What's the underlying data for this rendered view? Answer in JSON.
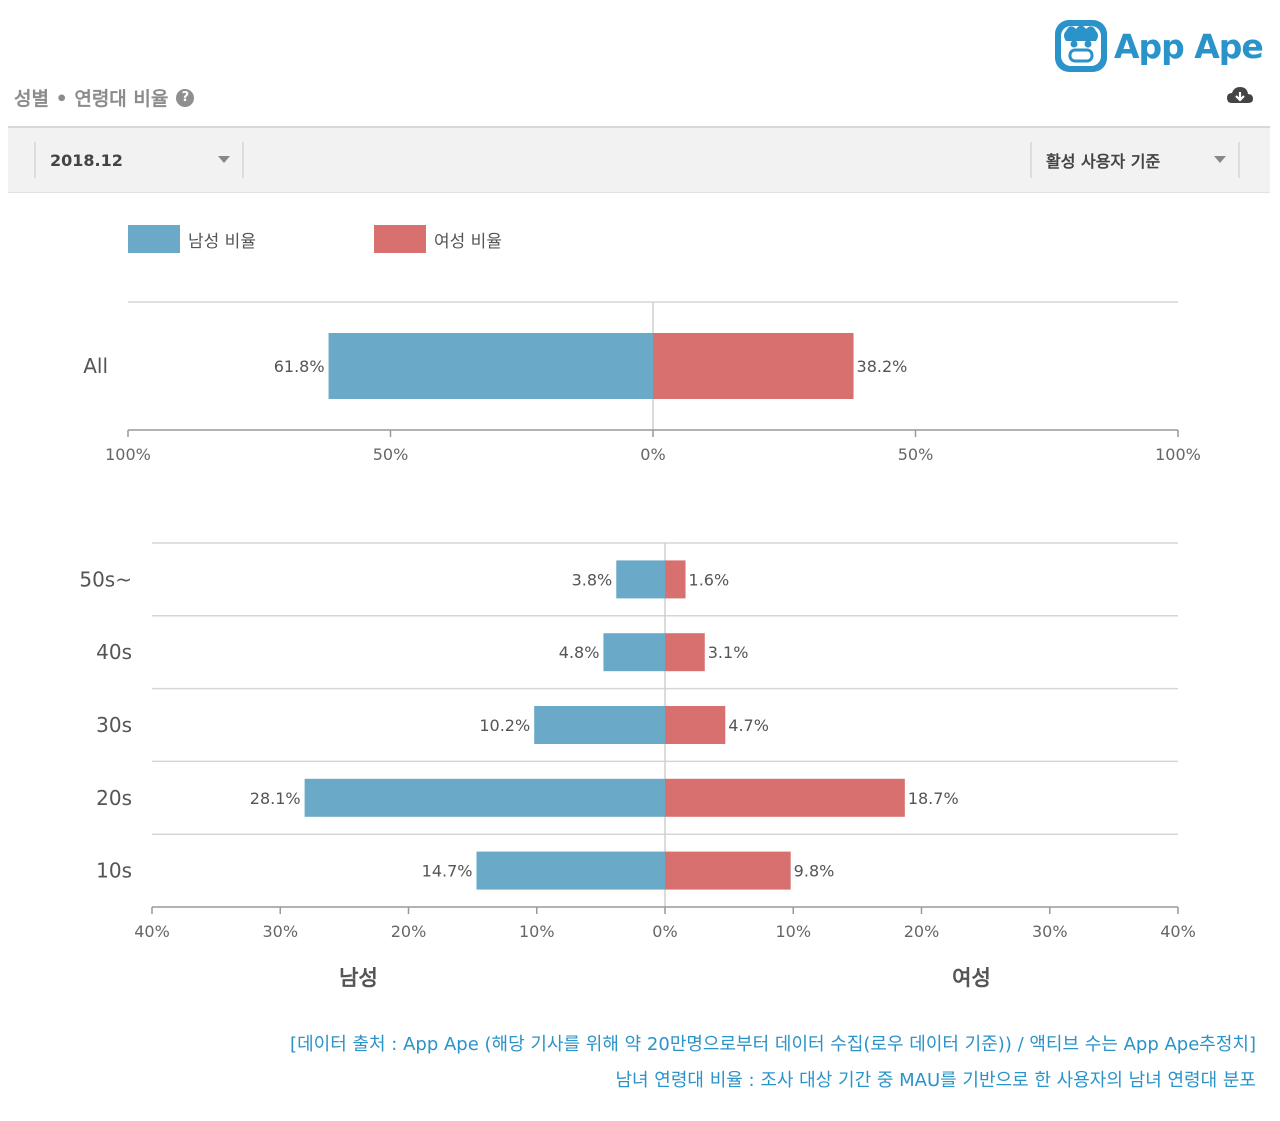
{
  "brand": {
    "name": "App Ape",
    "logo_icon": "monkey-face-icon",
    "color": "#2a93c9"
  },
  "header": {
    "title": "성별 • 연령대 비율",
    "help_icon": "question-circle-icon",
    "download_icon": "cloud-download-icon"
  },
  "filters": {
    "month": {
      "value": "2018.12"
    },
    "basis": {
      "value": "활성 사용자 기준"
    }
  },
  "legend": {
    "male": {
      "label": "남성 비율",
      "color": "#6aa9c7"
    },
    "female": {
      "label": "여성 비율",
      "color": "#d87070"
    }
  },
  "chart_data": [
    {
      "type": "bar",
      "orientation": "horizontal-diverging",
      "categories": [
        "All"
      ],
      "series": [
        {
          "name": "남성 비율",
          "values": [
            61.8
          ],
          "labels": [
            "61.8%"
          ],
          "color": "#6aa9c7"
        },
        {
          "name": "여성 비율",
          "values": [
            38.2
          ],
          "labels": [
            "38.2%"
          ],
          "color": "#d87070"
        }
      ],
      "xlim": [
        -100,
        100
      ],
      "ticks": [
        {
          "value": -100,
          "label": "100%"
        },
        {
          "value": -50,
          "label": "50%"
        },
        {
          "value": 0,
          "label": "0%"
        },
        {
          "value": 50,
          "label": "50%"
        },
        {
          "value": 100,
          "label": "100%"
        }
      ]
    },
    {
      "type": "bar",
      "orientation": "horizontal-diverging",
      "categories": [
        "50s~",
        "40s",
        "30s",
        "20s",
        "10s"
      ],
      "series": [
        {
          "name": "남성 비율",
          "values": [
            3.8,
            4.8,
            10.2,
            28.1,
            14.7
          ],
          "labels": [
            "3.8%",
            "4.8%",
            "10.2%",
            "28.1%",
            "14.7%"
          ],
          "color": "#6aa9c7"
        },
        {
          "name": "여성 비율",
          "values": [
            1.6,
            3.1,
            4.7,
            18.7,
            9.8
          ],
          "labels": [
            "1.6%",
            "3.1%",
            "4.7%",
            "18.7%",
            "9.8%"
          ],
          "color": "#d87070"
        }
      ],
      "xlim": [
        -40,
        40
      ],
      "ticks": [
        {
          "value": -40,
          "label": "40%"
        },
        {
          "value": -30,
          "label": "30%"
        },
        {
          "value": -20,
          "label": "20%"
        },
        {
          "value": -10,
          "label": "10%"
        },
        {
          "value": 0,
          "label": "0%"
        },
        {
          "value": 10,
          "label": "10%"
        },
        {
          "value": 20,
          "label": "20%"
        },
        {
          "value": 30,
          "label": "30%"
        },
        {
          "value": 40,
          "label": "40%"
        }
      ],
      "xlabel_left": "남성",
      "xlabel_right": "여성"
    }
  ],
  "footnotes": {
    "line1": "[데이터 출처 : App Ape (해당 기사를 위해 약 20만명으로부터 데이터 수집(로우 데이터 기준)) / 액티브 수는 App Ape추정치]",
    "line2": "남녀 연령대 비율 : 조사 대상 기간 중 MAU를 기반으로 한 사용자의 남녀 연령대 분포"
  }
}
